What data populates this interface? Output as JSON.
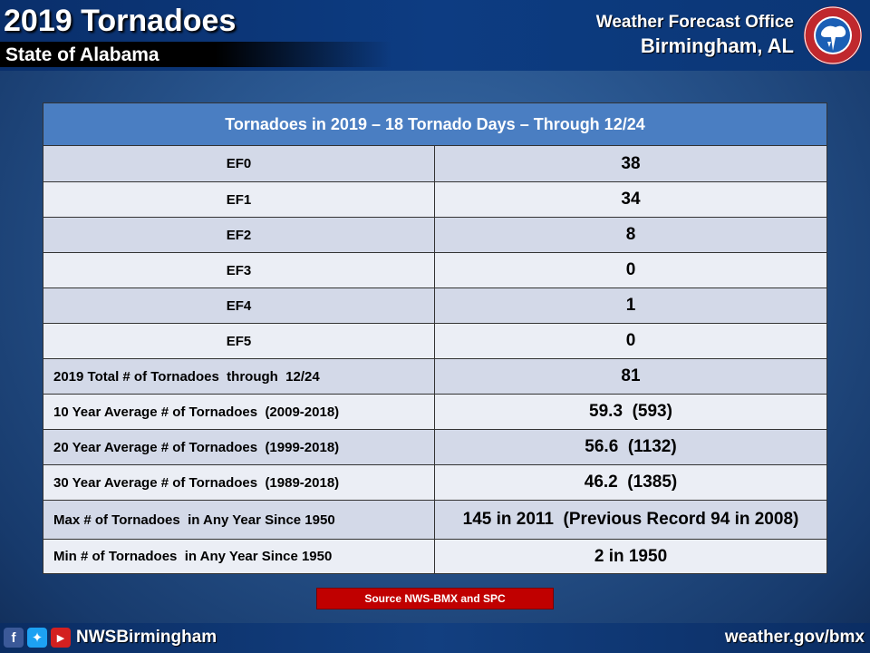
{
  "header": {
    "title": "2019 Tornadoes",
    "subtitle": "State of Alabama",
    "office_line1": "Weather Forecast Office",
    "office_line2": "Birmingham, AL",
    "logo_icon": "nws-logo-icon"
  },
  "table": {
    "title": "Tornadoes in 2019 – 18 Tornado Days – Through 12/24",
    "rows": [
      {
        "label": "EF0",
        "value": "38"
      },
      {
        "label": "EF1",
        "value": "34"
      },
      {
        "label": "EF2",
        "value": "8"
      },
      {
        "label": "EF3",
        "value": "0"
      },
      {
        "label": "EF4",
        "value": "1"
      },
      {
        "label": "EF5",
        "value": "0"
      },
      {
        "label": "2019 Total # of Tornadoes  through  12/24",
        "value": "81"
      },
      {
        "label": "10 Year Average # of Tornadoes  (2009-2018)",
        "value": "59.3  (593)"
      },
      {
        "label": "20 Year Average # of Tornadoes  (1999-2018)",
        "value": "56.6  (1132)"
      },
      {
        "label": "30 Year Average # of Tornadoes  (1989-2018)",
        "value": "46.2  (1385)"
      },
      {
        "label": "Max # of Tornadoes  in Any Year Since 1950",
        "value": "145 in 2011  (Previous Record 94 in 2008)"
      },
      {
        "label": "Min # of Tornadoes  in Any Year Since 1950",
        "value": "2 in 1950"
      }
    ]
  },
  "source": "Source NWS-BMX and SPC",
  "footer": {
    "handle": "NWSBirmingham",
    "website": "weather.gov/bmx",
    "icons": [
      "facebook-icon",
      "twitter-icon",
      "youtube-icon"
    ]
  },
  "colors": {
    "table_header": "#4a7ec2",
    "row_shade": "#d3d9e8",
    "row_plain": "#ebeef5",
    "source_badge": "#c00000"
  }
}
